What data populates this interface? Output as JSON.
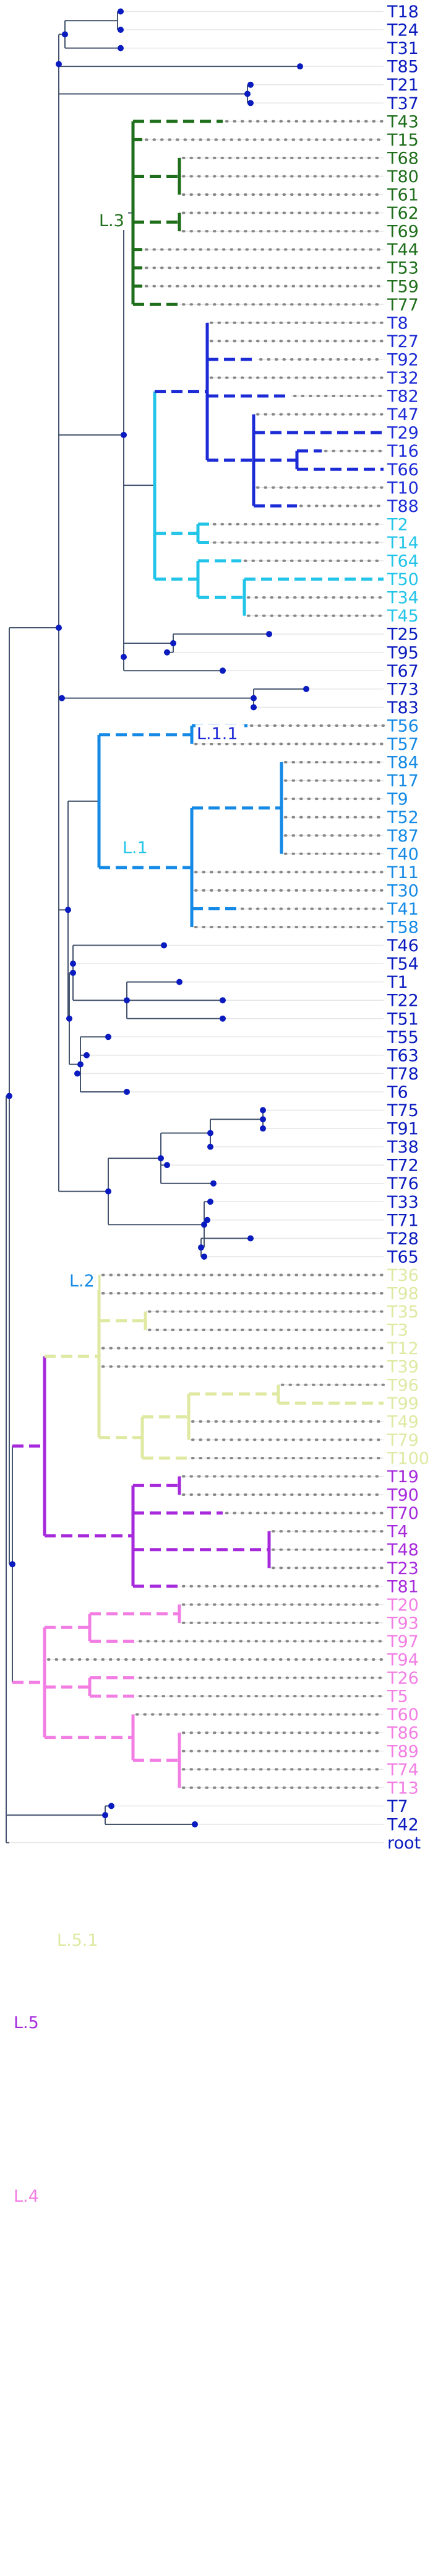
{
  "colors": {
    "default": "#0a1bbf",
    "branch_default": "#46556f",
    "guide": "#e6e6e6",
    "dotted": "#888888",
    "L.3": "#1f6e1b",
    "L.1.1": "#1c2bd6",
    "L.1": "#22c4e8",
    "L.2": "#148ae6",
    "L.5.1": "#dfe9a2",
    "L.5": "#a62adc",
    "L.4": "#f27ee4"
  },
  "clade_labels": [
    {
      "id": "L.3",
      "text": "L.3"
    },
    {
      "id": "L.1.1",
      "text": "L.1.1"
    },
    {
      "id": "L.1",
      "text": "L.1"
    },
    {
      "id": "L.2",
      "text": "L.2"
    },
    {
      "id": "L.5.1",
      "text": "L.5.1"
    },
    {
      "id": "L.5",
      "text": "L.5"
    },
    {
      "id": "L.4",
      "text": "L.4"
    }
  ],
  "leaves": [
    {
      "label": "T18",
      "clade": null
    },
    {
      "label": "T24",
      "clade": null
    },
    {
      "label": "T31",
      "clade": null
    },
    {
      "label": "T85",
      "clade": null
    },
    {
      "label": "T21",
      "clade": null
    },
    {
      "label": "T37",
      "clade": null
    },
    {
      "label": "T43",
      "clade": "L.3"
    },
    {
      "label": "T15",
      "clade": "L.3"
    },
    {
      "label": "T68",
      "clade": "L.3"
    },
    {
      "label": "T80",
      "clade": "L.3"
    },
    {
      "label": "T61",
      "clade": "L.3"
    },
    {
      "label": "T62",
      "clade": "L.3"
    },
    {
      "label": "T69",
      "clade": "L.3"
    },
    {
      "label": "T44",
      "clade": "L.3"
    },
    {
      "label": "T53",
      "clade": "L.3"
    },
    {
      "label": "T59",
      "clade": "L.3"
    },
    {
      "label": "T77",
      "clade": "L.3"
    },
    {
      "label": "T8",
      "clade": "L.1.1"
    },
    {
      "label": "T27",
      "clade": "L.1.1"
    },
    {
      "label": "T92",
      "clade": "L.1.1"
    },
    {
      "label": "T32",
      "clade": "L.1.1"
    },
    {
      "label": "T82",
      "clade": "L.1.1"
    },
    {
      "label": "T47",
      "clade": "L.1.1"
    },
    {
      "label": "T29",
      "clade": "L.1.1"
    },
    {
      "label": "T16",
      "clade": "L.1.1"
    },
    {
      "label": "T66",
      "clade": "L.1.1"
    },
    {
      "label": "T10",
      "clade": "L.1.1"
    },
    {
      "label": "T88",
      "clade": "L.1.1"
    },
    {
      "label": "T2",
      "clade": "L.1"
    },
    {
      "label": "T14",
      "clade": "L.1"
    },
    {
      "label": "T64",
      "clade": "L.1"
    },
    {
      "label": "T50",
      "clade": "L.1"
    },
    {
      "label": "T34",
      "clade": "L.1"
    },
    {
      "label": "T45",
      "clade": "L.1"
    },
    {
      "label": "T25",
      "clade": null
    },
    {
      "label": "T95",
      "clade": null
    },
    {
      "label": "T67",
      "clade": null
    },
    {
      "label": "T73",
      "clade": null
    },
    {
      "label": "T83",
      "clade": null
    },
    {
      "label": "T56",
      "clade": "L.2"
    },
    {
      "label": "T57",
      "clade": "L.2"
    },
    {
      "label": "T84",
      "clade": "L.2"
    },
    {
      "label": "T17",
      "clade": "L.2"
    },
    {
      "label": "T9",
      "clade": "L.2"
    },
    {
      "label": "T52",
      "clade": "L.2"
    },
    {
      "label": "T87",
      "clade": "L.2"
    },
    {
      "label": "T40",
      "clade": "L.2"
    },
    {
      "label": "T11",
      "clade": "L.2"
    },
    {
      "label": "T30",
      "clade": "L.2"
    },
    {
      "label": "T41",
      "clade": "L.2"
    },
    {
      "label": "T58",
      "clade": "L.2"
    },
    {
      "label": "T46",
      "clade": null
    },
    {
      "label": "T54",
      "clade": null
    },
    {
      "label": "T1",
      "clade": null
    },
    {
      "label": "T22",
      "clade": null
    },
    {
      "label": "T51",
      "clade": null
    },
    {
      "label": "T55",
      "clade": null
    },
    {
      "label": "T63",
      "clade": null
    },
    {
      "label": "T78",
      "clade": null
    },
    {
      "label": "T6",
      "clade": null
    },
    {
      "label": "T75",
      "clade": null
    },
    {
      "label": "T91",
      "clade": null
    },
    {
      "label": "T38",
      "clade": null
    },
    {
      "label": "T72",
      "clade": null
    },
    {
      "label": "T76",
      "clade": null
    },
    {
      "label": "T33",
      "clade": null
    },
    {
      "label": "T71",
      "clade": null
    },
    {
      "label": "T28",
      "clade": null
    },
    {
      "label": "T65",
      "clade": null
    },
    {
      "label": "T36",
      "clade": "L.5.1"
    },
    {
      "label": "T98",
      "clade": "L.5.1"
    },
    {
      "label": "T35",
      "clade": "L.5.1"
    },
    {
      "label": "T3",
      "clade": "L.5.1"
    },
    {
      "label": "T12",
      "clade": "L.5.1"
    },
    {
      "label": "T39",
      "clade": "L.5.1"
    },
    {
      "label": "T96",
      "clade": "L.5.1"
    },
    {
      "label": "T99",
      "clade": "L.5.1"
    },
    {
      "label": "T49",
      "clade": "L.5.1"
    },
    {
      "label": "T79",
      "clade": "L.5.1"
    },
    {
      "label": "T100",
      "clade": "L.5.1"
    },
    {
      "label": "T19",
      "clade": "L.5"
    },
    {
      "label": "T90",
      "clade": "L.5"
    },
    {
      "label": "T70",
      "clade": "L.5"
    },
    {
      "label": "T4",
      "clade": "L.5"
    },
    {
      "label": "T48",
      "clade": "L.5"
    },
    {
      "label": "T23",
      "clade": "L.5"
    },
    {
      "label": "T81",
      "clade": "L.5"
    },
    {
      "label": "T20",
      "clade": "L.4"
    },
    {
      "label": "T93",
      "clade": "L.4"
    },
    {
      "label": "T97",
      "clade": "L.4"
    },
    {
      "label": "T94",
      "clade": "L.4"
    },
    {
      "label": "T26",
      "clade": "L.4"
    },
    {
      "label": "T5",
      "clade": "L.4"
    },
    {
      "label": "T60",
      "clade": "L.4"
    },
    {
      "label": "T86",
      "clade": "L.4"
    },
    {
      "label": "T89",
      "clade": "L.4"
    },
    {
      "label": "T74",
      "clade": "L.4"
    },
    {
      "label": "T13",
      "clade": "L.4"
    },
    {
      "label": "T7",
      "clade": null
    },
    {
      "label": "T42",
      "clade": null
    },
    {
      "label": "root",
      "clade": null
    }
  ]
}
